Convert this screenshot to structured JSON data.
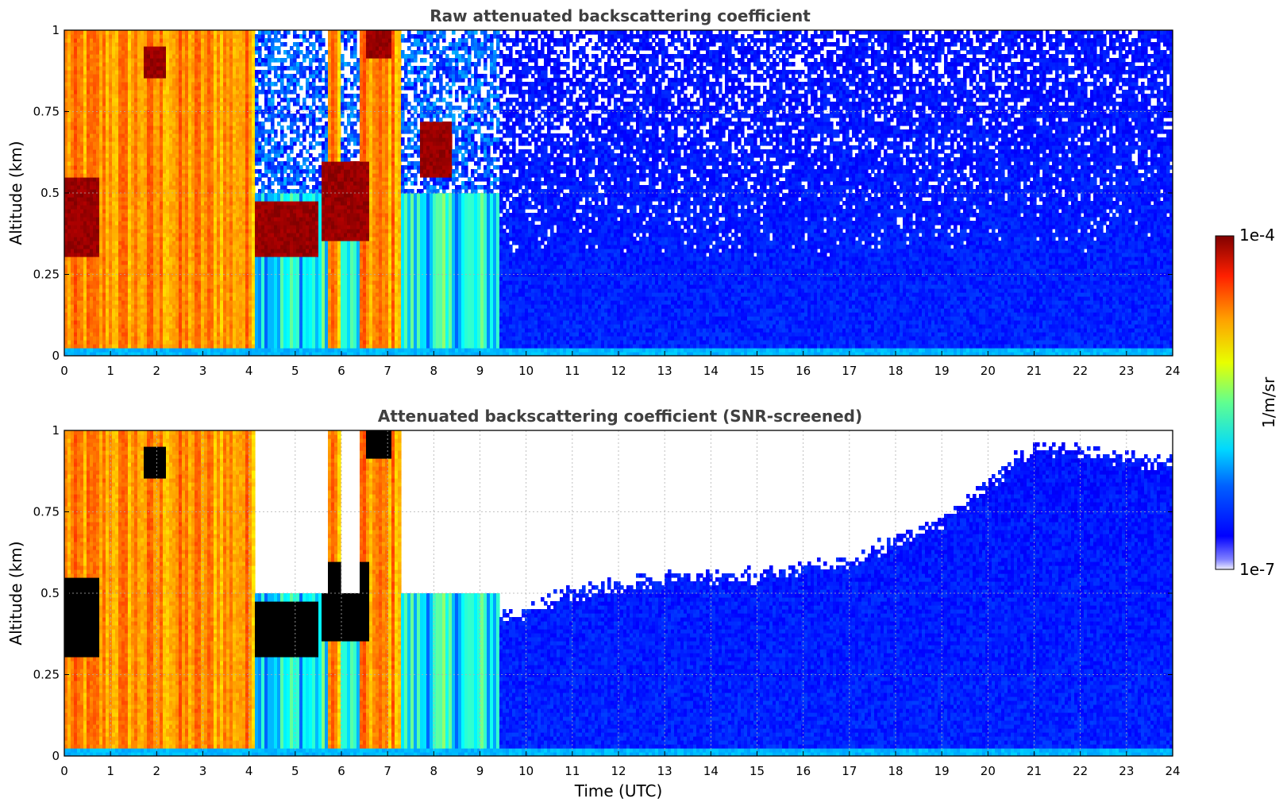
{
  "chart_data": [
    {
      "type": "heatmap",
      "title": "Raw attenuated backscattering coefficient",
      "xlabel": "",
      "ylabel": "Altitude (km)",
      "xlim": [
        0,
        24
      ],
      "ylim": [
        0,
        1
      ],
      "xticks": [
        "0",
        "1",
        "2",
        "3",
        "4",
        "5",
        "6",
        "7",
        "8",
        "9",
        "10",
        "11",
        "12",
        "13",
        "14",
        "15",
        "16",
        "17",
        "18",
        "19",
        "20",
        "21",
        "22",
        "23",
        "24"
      ],
      "yticks": [
        "0",
        "0.25",
        "0.5",
        "0.75",
        "1"
      ],
      "grid": true,
      "screened": false
    },
    {
      "type": "heatmap",
      "title": "Attenuated backscattering coefficient (SNR-screened)",
      "xlabel": "Time (UTC)",
      "ylabel": "Altitude (km)",
      "xlim": [
        0,
        24
      ],
      "ylim": [
        0,
        1
      ],
      "xticks": [
        "0",
        "1",
        "2",
        "3",
        "4",
        "5",
        "6",
        "7",
        "8",
        "9",
        "10",
        "11",
        "12",
        "13",
        "14",
        "15",
        "16",
        "17",
        "18",
        "19",
        "20",
        "21",
        "22",
        "23",
        "24"
      ],
      "yticks": [
        "0",
        "0.25",
        "0.5",
        "0.75",
        "1"
      ],
      "grid": true,
      "screened": true
    }
  ],
  "colorbar": {
    "label": "1/m/sr",
    "min_label": "1e-7",
    "max_label": "1e-4",
    "colormap": "jet",
    "scale": "log"
  },
  "data_description": {
    "high_backscatter_periods_utc": [
      [
        0.0,
        4.1
      ],
      [
        5.7,
        6.0
      ],
      [
        6.4,
        7.3
      ]
    ],
    "cloud_layers": [
      {
        "t": [
          0.0,
          0.75
        ],
        "alt": [
          0.3,
          0.55
        ]
      },
      {
        "t": [
          1.7,
          2.2
        ],
        "alt": [
          0.85,
          0.95
        ]
      },
      {
        "t": [
          4.1,
          5.5
        ],
        "alt": [
          0.3,
          0.47
        ]
      },
      {
        "t": [
          5.6,
          6.6
        ],
        "alt": [
          0.35,
          0.6
        ]
      },
      {
        "t": [
          6.5,
          7.1
        ],
        "alt": [
          0.92,
          1.0
        ]
      },
      {
        "t": [
          7.7,
          8.4
        ],
        "alt": [
          0.55,
          0.72
        ]
      }
    ],
    "clear_air_after_utc": 9.4,
    "screened_signal_top_km": [
      [
        9.5,
        0.42
      ],
      [
        11,
        0.5
      ],
      [
        13,
        0.55
      ],
      [
        15,
        0.55
      ],
      [
        17,
        0.6
      ],
      [
        19,
        0.72
      ],
      [
        21,
        0.95
      ],
      [
        24,
        0.9
      ]
    ]
  }
}
